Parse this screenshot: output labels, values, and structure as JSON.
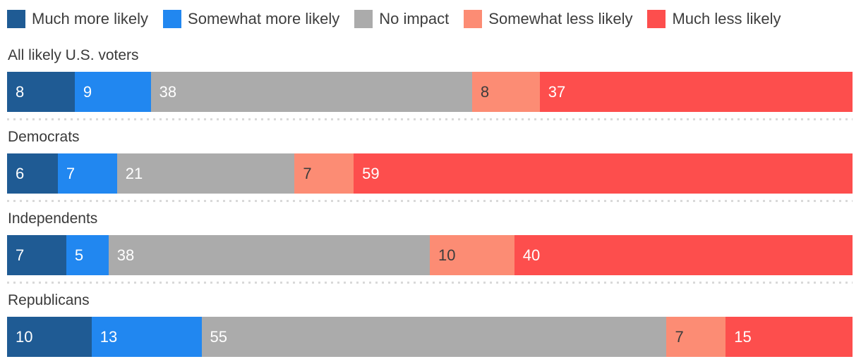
{
  "colors": {
    "background": "#ffffff",
    "text": "#3d3d3d",
    "separator": "#d9d9d9"
  },
  "legend": {
    "items": [
      {
        "label": "Much more likely",
        "color": "#1f5b94"
      },
      {
        "label": "Somewhat more likely",
        "color": "#2187f0"
      },
      {
        "label": "No impact",
        "color": "#ababab"
      },
      {
        "label": "Somewhat less likely",
        "color": "#fc8c74"
      },
      {
        "label": "Much less likely",
        "color": "#fd4e4d"
      }
    ]
  },
  "chart_data": {
    "type": "bar",
    "orientation": "horizontal",
    "stacked": true,
    "unit": "percent",
    "xlim": [
      0,
      100
    ],
    "grid": false,
    "legend_position": "top",
    "row_separator": "dotted",
    "categories": [
      "All likely U.S. voters",
      "Democrats",
      "Independents",
      "Republicans"
    ],
    "series": [
      {
        "name": "Much more likely",
        "color": "#1f5b94",
        "value_label_color": "#ffffff",
        "values": [
          8,
          6,
          7,
          10
        ]
      },
      {
        "name": "Somewhat more likely",
        "color": "#2187f0",
        "value_label_color": "#ffffff",
        "values": [
          9,
          7,
          5,
          13
        ]
      },
      {
        "name": "No impact",
        "color": "#ababab",
        "value_label_color": "#ffffff",
        "values": [
          38,
          21,
          38,
          55
        ]
      },
      {
        "name": "Somewhat less likely",
        "color": "#fc8c74",
        "value_label_color": "#3c3c3c",
        "values": [
          8,
          7,
          10,
          7
        ]
      },
      {
        "name": "Much less likely",
        "color": "#fd4e4d",
        "value_label_color": "#ffffff",
        "values": [
          37,
          59,
          40,
          15
        ]
      }
    ]
  }
}
